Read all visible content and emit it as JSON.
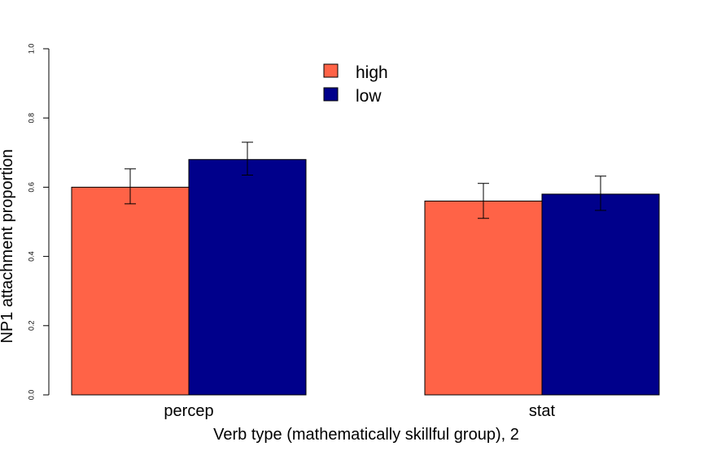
{
  "chart_data": {
    "type": "bar",
    "categories": [
      "percep",
      "stat"
    ],
    "series": [
      {
        "name": "high",
        "color": "#FF6347",
        "values": [
          0.6,
          0.56
        ],
        "err_low": [
          0.552,
          0.51
        ],
        "err_high": [
          0.653,
          0.611
        ]
      },
      {
        "name": "low",
        "color": "#00008B",
        "values": [
          0.68,
          0.58
        ],
        "err_low": [
          0.635,
          0.533
        ],
        "err_high": [
          0.73,
          0.632
        ]
      }
    ],
    "xlabel": "Verb type (mathematically skillful group), 2",
    "ylabel": "NP1 attachment proportion",
    "ylim": [
      0,
      1
    ],
    "yticks": [
      "0.0",
      "0.2",
      "0.4",
      "0.6",
      "0.8",
      "1.0"
    ],
    "legend_position": "top-center",
    "grid": false
  }
}
